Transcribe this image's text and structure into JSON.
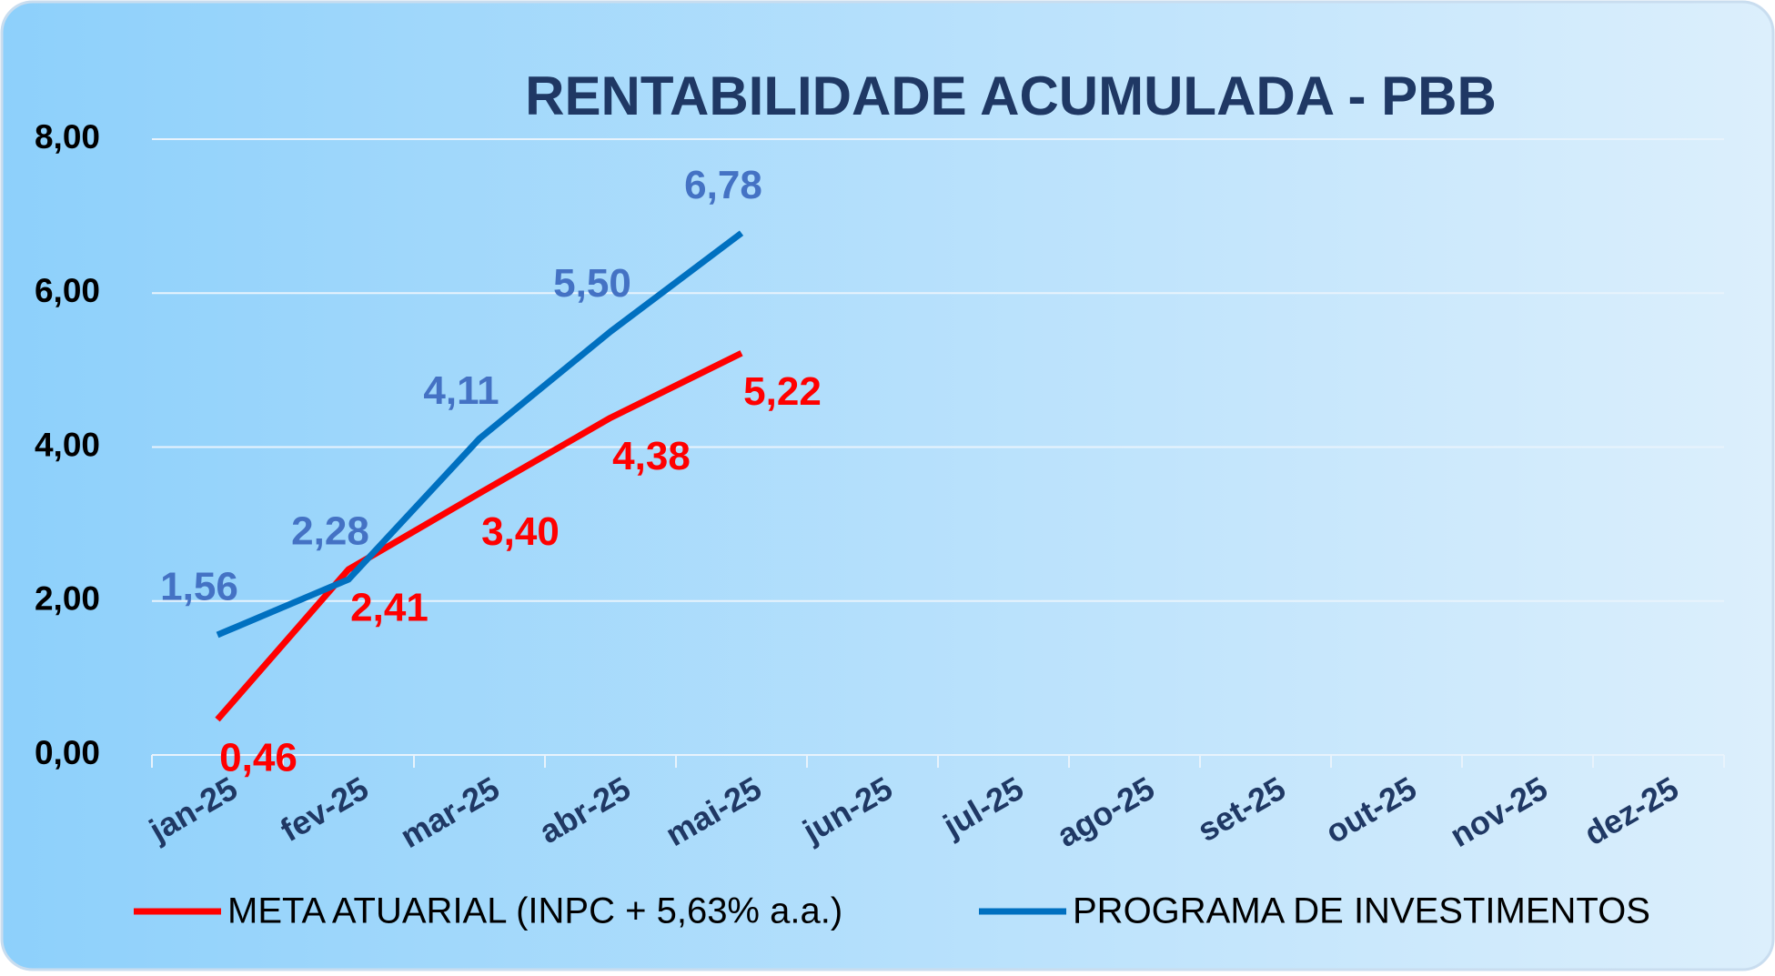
{
  "chart_data": {
    "type": "line",
    "title": "RENTABILIDADE ACUMULADA - PBB",
    "categories": [
      "jan-25",
      "fev-25",
      "mar-25",
      "abr-25",
      "mai-25",
      "jun-25",
      "jul-25",
      "ago-25",
      "set-25",
      "out-25",
      "nov-25",
      "dez-25"
    ],
    "series": [
      {
        "name": "META ATUARIAL (INPC + 5,63% a.a.)",
        "color": "#ff0000",
        "label_color": "#ff0000",
        "values": [
          0.46,
          2.41,
          3.4,
          4.38,
          5.22,
          null,
          null,
          null,
          null,
          null,
          null,
          null
        ],
        "value_labels": [
          "0,46",
          "2,41",
          "3,40",
          "4,38",
          "5,22",
          null,
          null,
          null,
          null,
          null,
          null,
          null
        ]
      },
      {
        "name": "PROGRAMA DE INVESTIMENTOS",
        "color": "#0070c0",
        "label_color": "#4472c4",
        "values": [
          1.56,
          2.28,
          4.11,
          5.5,
          6.78,
          null,
          null,
          null,
          null,
          null,
          null,
          null
        ],
        "value_labels": [
          "1,56",
          "2,28",
          "4,11",
          "5,50",
          "6,78",
          null,
          null,
          null,
          null,
          null,
          null,
          null
        ]
      }
    ],
    "ylim": [
      0,
      8
    ],
    "yticks": [
      {
        "value": 0,
        "label": "0,00"
      },
      {
        "value": 2,
        "label": "2,00"
      },
      {
        "value": 4,
        "label": "4,00"
      },
      {
        "value": 6,
        "label": "6,00"
      },
      {
        "value": 8,
        "label": "8,00"
      }
    ],
    "grid": true,
    "legend": "bottom"
  }
}
